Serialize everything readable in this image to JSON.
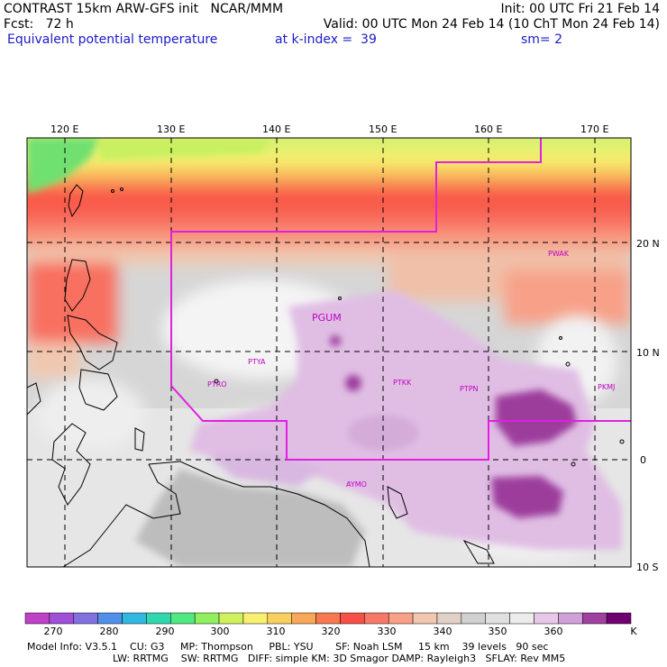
{
  "header": {
    "line1_left": "CONTRAST 15km ARW-GFS init   NCAR/MMM",
    "line1_right": "Init: 00 UTC Fri 21 Feb 14",
    "fcst_label": "Fcst:   72 h",
    "valid": "Valid: 00 UTC Mon 24 Feb 14 (10 ChT Mon 24 Feb 14)",
    "field": "Equivalent potential temperature",
    "level": "at k-index =  39",
    "smoothing": "sm= 2"
  },
  "map": {
    "lon_labels": [
      "120 E",
      "130 E",
      "140 E",
      "150 E",
      "160 E",
      "170 E"
    ],
    "lat_labels": [
      "20 N",
      "10 N",
      "0",
      "10 S"
    ],
    "stations": [
      "PGUM",
      "PTYA",
      "PTRO",
      "PTKK",
      "PTPN",
      "PKMJ",
      "PWAK",
      "AYMO"
    ]
  },
  "colorbar": {
    "unit": "K",
    "tick_labels": [
      "270",
      "280",
      "290",
      "300",
      "310",
      "320",
      "330",
      "340",
      "350",
      "360"
    ],
    "colors": [
      "#c040c8",
      "#a050d8",
      "#8070e0",
      "#5090e8",
      "#30b8e0",
      "#30d8b0",
      "#50e880",
      "#90f060",
      "#d0f060",
      "#f8f070",
      "#f8d060",
      "#f8a858",
      "#f87850",
      "#f85048",
      "#f87868",
      "#f8a088",
      "#f0c8b0",
      "#e0d0c8",
      "#d0d0d0",
      "#e0e0e0",
      "#ececec",
      "#e8c8e8",
      "#d0a0d8",
      "#a040a0",
      "#700070"
    ]
  },
  "model_info": {
    "line1": "Model Info: V3.5.1    CU: G3     MP: Thompson     PBL: YSU       SF: Noah LSM     15 km    39 levels   90 sec",
    "line2": "LW: RRTMG    SW: RRTMG   DIFF: simple KM: 3D Smagor DAMP: Rayleigh3   SFLAY: Rev MM5"
  }
}
